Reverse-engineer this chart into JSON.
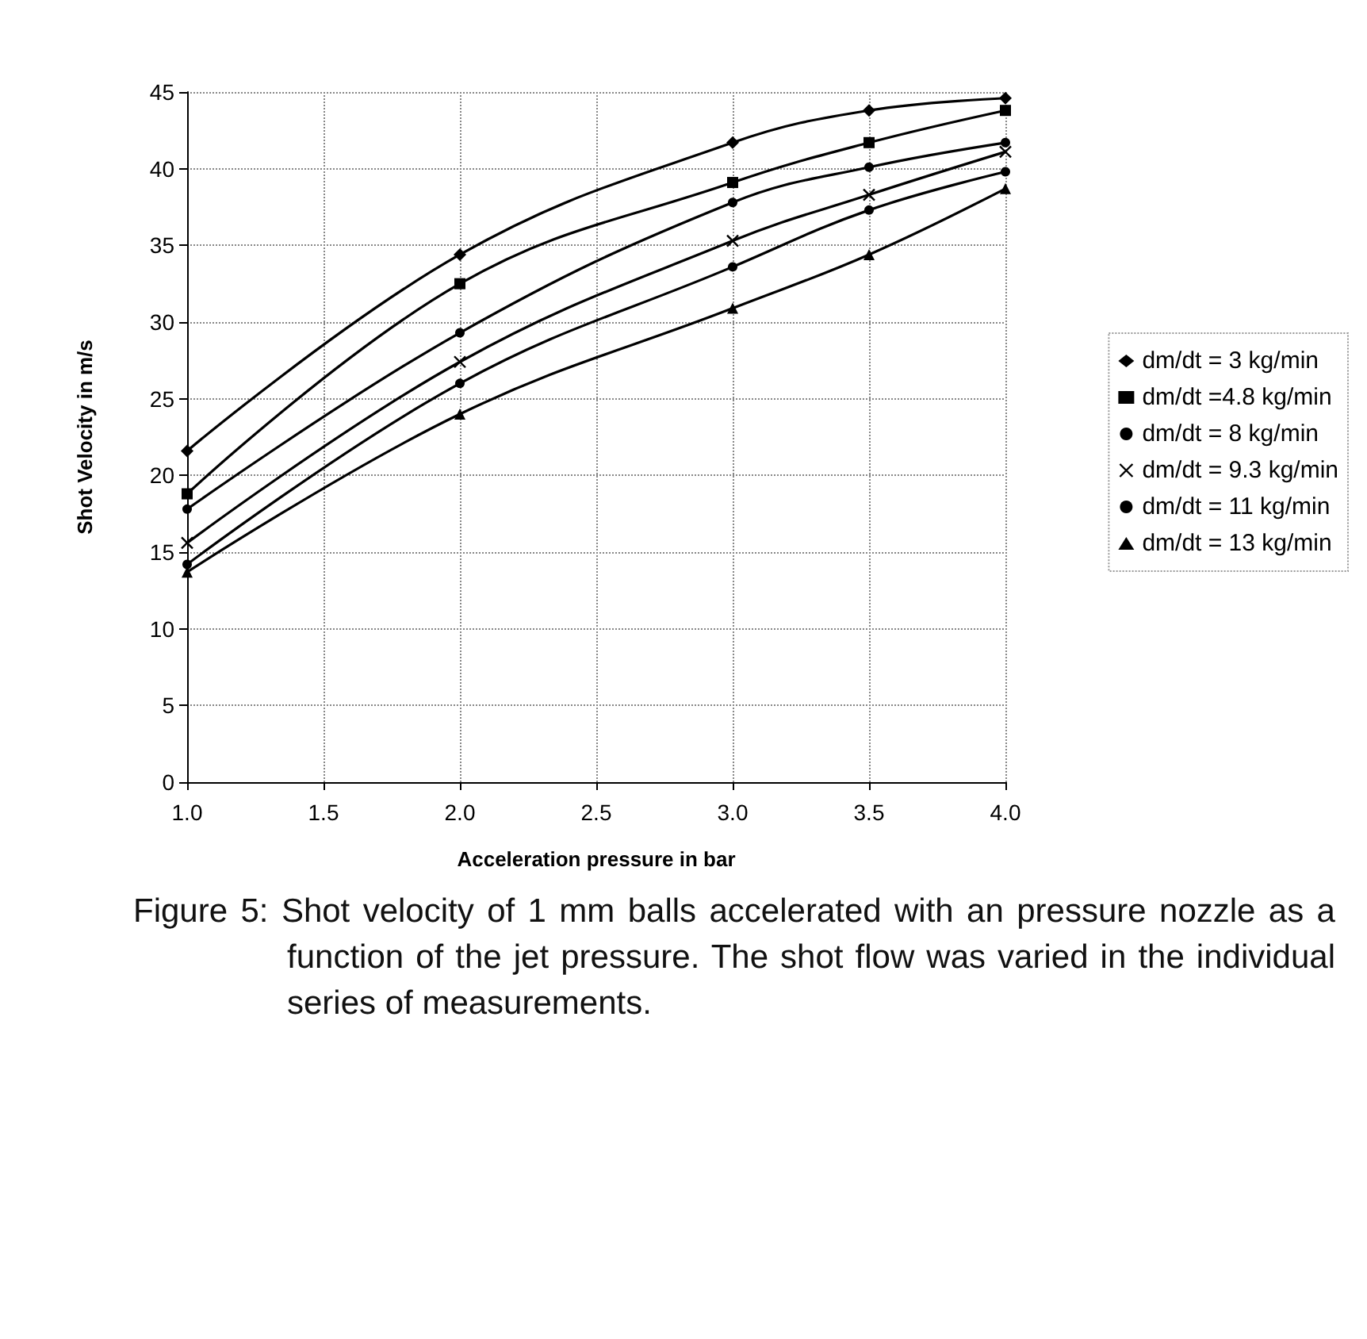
{
  "chart_data": {
    "type": "line",
    "xlabel": "Acceleration pressure in bar",
    "ylabel": "Shot Velocity in m/s",
    "annotations": [
      "Figure 5:  Shot velocity of 1 mm balls accelerated with an pressure nozzle as a function of the jet pressure. The shot flow was varied in the individual series of measurements."
    ],
    "x": [
      1,
      2,
      3,
      3.5,
      4
    ],
    "series": [
      {
        "name": "dm/dt = 3 kg/min",
        "color": "#000000",
        "marker": "diamond",
        "values": [
          21.6,
          34.4,
          41.7,
          43.8,
          44.6
        ]
      },
      {
        "name": "dm/dt =4.8 kg/min",
        "color": "#000000",
        "marker": "square",
        "values": [
          18.8,
          32.5,
          39.1,
          41.7,
          43.8
        ]
      },
      {
        "name": "dm/dt = 8 kg/min",
        "color": "#000000",
        "marker": "circle",
        "values": [
          17.8,
          29.3,
          37.8,
          40.1,
          41.7
        ]
      },
      {
        "name": "dm/dt = 9.3 kg/min",
        "color": "#000000",
        "marker": "cross",
        "values": [
          15.6,
          27.4,
          35.3,
          38.3,
          41.1
        ]
      },
      {
        "name": "dm/dt = 11 kg/min",
        "color": "#000000",
        "marker": "circle",
        "values": [
          14.2,
          26.0,
          33.6,
          37.3,
          39.8
        ]
      },
      {
        "name": "dm/dt = 13 kg/min",
        "color": "#000000",
        "marker": "triangle",
        "values": [
          13.7,
          24.0,
          30.9,
          34.4,
          38.7
        ]
      }
    ],
    "xlim": [
      1,
      4
    ],
    "xticks": [
      {
        "value": 1,
        "label": "1.0"
      },
      {
        "value": 1.5,
        "label": "1.5"
      },
      {
        "value": 2,
        "label": "2.0"
      },
      {
        "value": 2.5,
        "label": "2.5"
      },
      {
        "value": 3,
        "label": "3.0"
      },
      {
        "value": 3.5,
        "label": "3.5"
      },
      {
        "value": 4,
        "label": "4.0"
      }
    ],
    "ylim": [
      0,
      45
    ],
    "yticks": [
      0,
      5,
      10,
      15,
      20,
      25,
      30,
      35,
      40,
      45
    ],
    "grid": true,
    "legend": "right",
    "line_style": "solid"
  }
}
